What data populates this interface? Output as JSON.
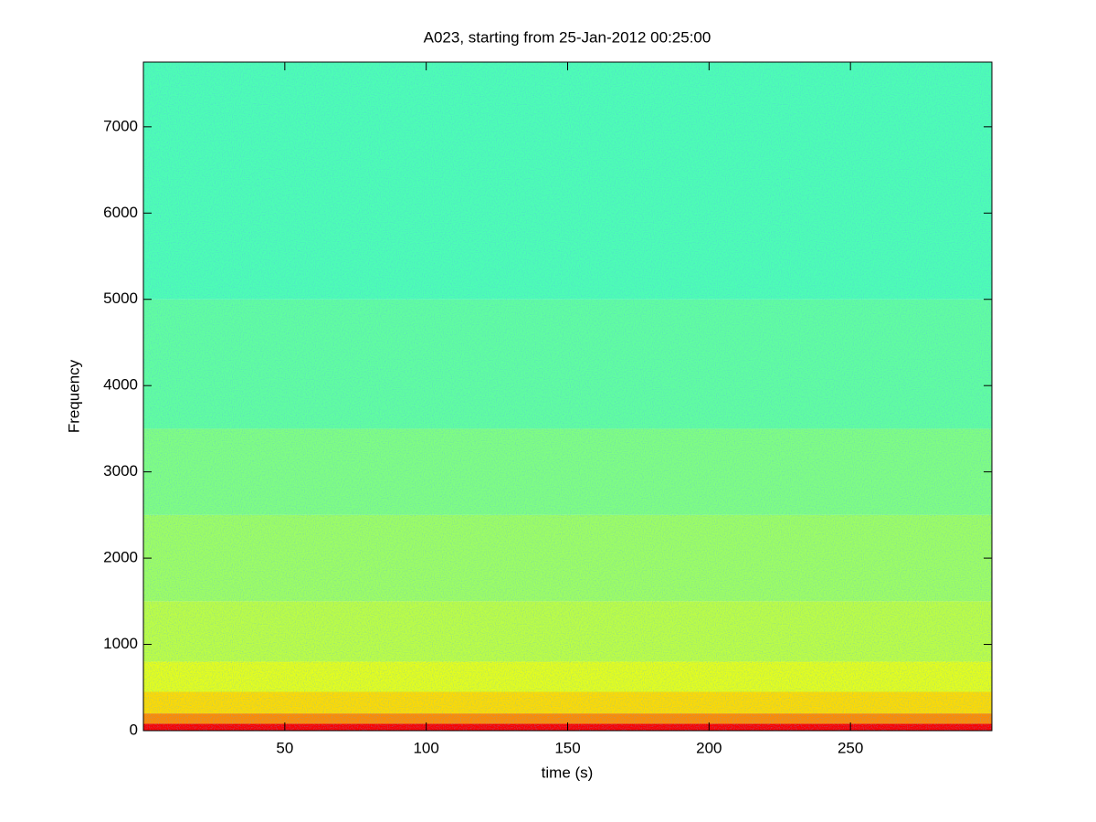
{
  "chart_data": {
    "type": "spectrogram",
    "title": "A023, starting from 25-Jan-2012 00:25:00",
    "x_label": "time (s)",
    "y_label": "Frequency",
    "xlim": [
      0,
      300
    ],
    "xticks": [
      50,
      100,
      150,
      200,
      250
    ],
    "ylim": [
      0,
      7750
    ],
    "yticks": [
      0,
      1000,
      2000,
      3000,
      4000,
      5000,
      6000,
      7000
    ],
    "colormap": "jet",
    "y_bins": [
      0,
      80,
      200,
      450,
      800,
      1500,
      2500,
      3500,
      5000,
      7750
    ],
    "levels": [
      0.88,
      0.74,
      0.66,
      0.6,
      0.56,
      0.53,
      0.5,
      0.47,
      0.45
    ]
  }
}
